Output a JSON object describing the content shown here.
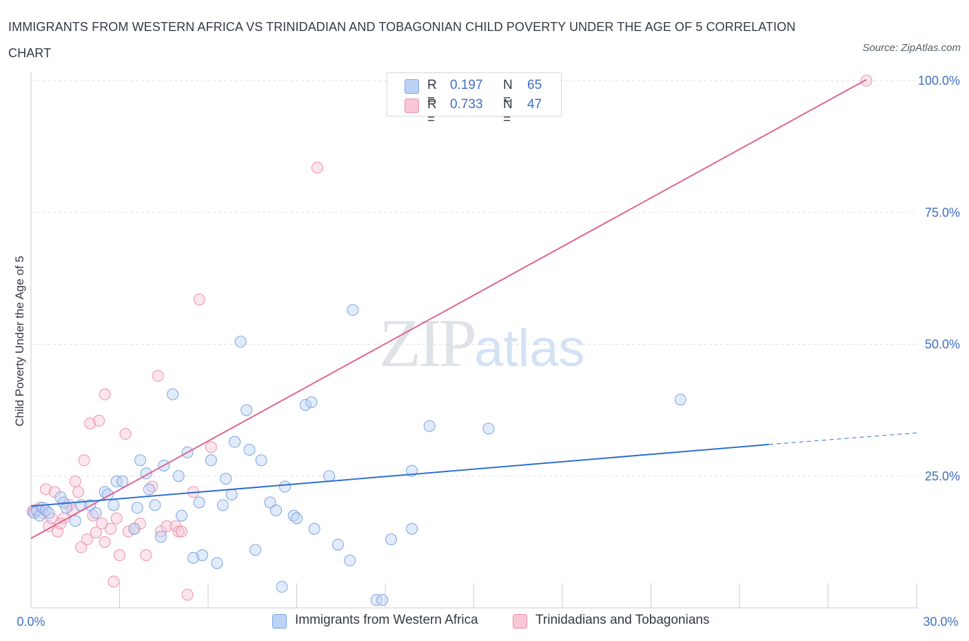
{
  "title": "IMMIGRANTS FROM WESTERN AFRICA VS TRINIDADIAN AND TOBAGONIAN CHILD POVERTY UNDER THE AGE OF 5 CORRELATION CHART",
  "source": "Source: ZipAtlas.com",
  "watermark": {
    "zip": "ZIP",
    "atlas": "atlas"
  },
  "legend": {
    "rows": [
      {
        "r_label": "R =",
        "r_value": "0.197",
        "n_label": "N =",
        "n_value": "65",
        "fill": "#bcd3f6",
        "stroke": "#7aa4e0"
      },
      {
        "r_label": "R =",
        "r_value": "0.733",
        "n_label": "N =",
        "n_value": "47",
        "fill": "#f9c6d6",
        "stroke": "#ec92ae"
      }
    ]
  },
  "bottom_legend": [
    {
      "label": "Immigrants from Western Africa",
      "fill": "#bcd3f6",
      "stroke": "#7aa4e0"
    },
    {
      "label": "Trinidadians and Tobagonians",
      "fill": "#f9c6d6",
      "stroke": "#ec92ae"
    }
  ],
  "chart_data": {
    "type": "scatter",
    "ylabel": "Child Poverty Under the Age of 5",
    "xlim": [
      0,
      30
    ],
    "ylim": [
      0,
      100
    ],
    "x_tick_labels": [
      "0.0%",
      "30.0%"
    ],
    "y_tick_labels": [
      "25.0%",
      "50.0%",
      "75.0%",
      "100.0%"
    ],
    "y_ticks": [
      25,
      50,
      75,
      100
    ],
    "grid": "horizontal dashed",
    "colors": {
      "blue_line": "#2e6fcc",
      "pink_line": "#e0648e",
      "blue_point": "#7aa4e0",
      "pink_point": "#ec92ae"
    },
    "series": [
      {
        "name": "Immigrants from Western Africa",
        "trend": {
          "x": [
            0,
            25
          ],
          "y": [
            19.3,
            31.0
          ],
          "dashed_extension_to_x": 30,
          "dashed_y_end": 33.2
        },
        "points": [
          [
            0.1,
            18
          ],
          [
            0.2,
            18.5
          ],
          [
            0.3,
            17.5
          ],
          [
            0.4,
            19
          ],
          [
            0.5,
            18.5
          ],
          [
            0.6,
            18
          ],
          [
            1.0,
            21
          ],
          [
            1.1,
            20
          ],
          [
            1.2,
            19
          ],
          [
            1.5,
            16.5
          ],
          [
            1.7,
            19.5
          ],
          [
            2.0,
            19.5
          ],
          [
            2.2,
            18
          ],
          [
            2.5,
            22
          ],
          [
            2.6,
            21.5
          ],
          [
            2.8,
            19.5
          ],
          [
            2.9,
            24
          ],
          [
            3.1,
            24
          ],
          [
            3.5,
            15
          ],
          [
            3.6,
            19
          ],
          [
            3.7,
            28
          ],
          [
            3.9,
            25.5
          ],
          [
            4.0,
            22.5
          ],
          [
            4.2,
            19.5
          ],
          [
            4.4,
            13.5
          ],
          [
            4.5,
            27
          ],
          [
            4.8,
            40.5
          ],
          [
            5.0,
            25
          ],
          [
            5.1,
            17.5
          ],
          [
            5.3,
            29.5
          ],
          [
            5.5,
            9.5
          ],
          [
            5.8,
            10
          ],
          [
            5.7,
            20
          ],
          [
            6.1,
            28
          ],
          [
            6.3,
            8.5
          ],
          [
            6.5,
            19.5
          ],
          [
            6.6,
            24.5
          ],
          [
            6.8,
            21.5
          ],
          [
            6.9,
            31.5
          ],
          [
            7.1,
            50.5
          ],
          [
            7.3,
            37.5
          ],
          [
            7.4,
            30
          ],
          [
            7.6,
            11
          ],
          [
            7.8,
            28
          ],
          [
            8.1,
            20
          ],
          [
            8.3,
            18.5
          ],
          [
            8.5,
            4
          ],
          [
            8.6,
            23
          ],
          [
            8.9,
            17.5
          ],
          [
            9.0,
            17
          ],
          [
            9.3,
            38.5
          ],
          [
            9.5,
            39
          ],
          [
            9.6,
            15
          ],
          [
            10.1,
            25
          ],
          [
            10.4,
            12
          ],
          [
            10.9,
            56.5
          ],
          [
            10.8,
            9
          ],
          [
            11.7,
            1.5
          ],
          [
            11.9,
            1.5
          ],
          [
            12.2,
            13
          ],
          [
            12.9,
            15
          ],
          [
            12.9,
            26
          ],
          [
            13.5,
            34.5
          ],
          [
            15.5,
            34
          ],
          [
            22.0,
            39.5
          ]
        ]
      },
      {
        "name": "Trinidadians and Tobagonians",
        "trend": {
          "x": [
            0,
            28.3
          ],
          "y": [
            13.2,
            100.2
          ]
        },
        "points": [
          [
            0.1,
            18.5
          ],
          [
            0.3,
            19
          ],
          [
            0.4,
            18
          ],
          [
            0.5,
            22.5
          ],
          [
            0.6,
            15.5
          ],
          [
            0.7,
            17
          ],
          [
            0.8,
            22
          ],
          [
            0.9,
            14.5
          ],
          [
            1.1,
            17
          ],
          [
            1.3,
            19.5
          ],
          [
            1.4,
            18.5
          ],
          [
            1.5,
            24
          ],
          [
            1.6,
            22
          ],
          [
            1.7,
            11.5
          ],
          [
            1.8,
            28
          ],
          [
            1.9,
            13
          ],
          [
            2.0,
            35
          ],
          [
            2.1,
            17.5
          ],
          [
            2.3,
            35.5
          ],
          [
            2.4,
            16
          ],
          [
            2.5,
            12.5
          ],
          [
            2.5,
            40.5
          ],
          [
            2.7,
            15
          ],
          [
            2.8,
            5
          ],
          [
            2.9,
            17
          ],
          [
            3.0,
            10
          ],
          [
            3.2,
            33
          ],
          [
            3.3,
            14.5
          ],
          [
            3.5,
            15
          ],
          [
            3.7,
            16
          ],
          [
            3.9,
            10
          ],
          [
            4.1,
            23
          ],
          [
            4.3,
            44
          ],
          [
            4.4,
            14.5
          ],
          [
            4.6,
            15.5
          ],
          [
            4.9,
            15.5
          ],
          [
            5.0,
            14.5
          ],
          [
            5.1,
            14.5
          ],
          [
            5.3,
            2.5
          ],
          [
            5.5,
            22
          ],
          [
            5.7,
            58.5
          ],
          [
            6.1,
            30.5
          ],
          [
            9.7,
            83.5
          ],
          [
            28.3,
            100
          ],
          [
            0.05,
            18.3
          ],
          [
            2.2,
            14.3
          ],
          [
            1.0,
            16
          ]
        ]
      }
    ]
  }
}
